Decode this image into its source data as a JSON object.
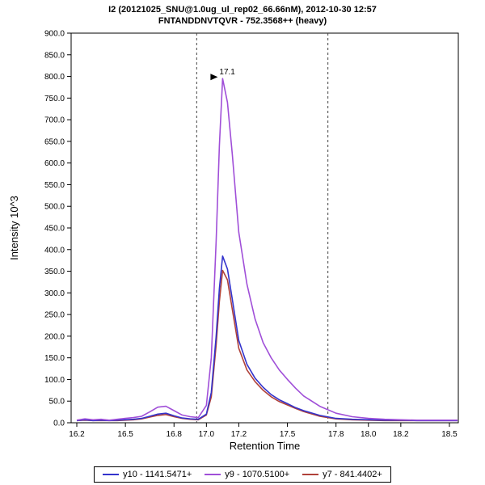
{
  "chart_data": {
    "type": "line",
    "title": "I2 (20121025_SNU@1.0ug_ul_rep02_66.66nM), 2012-10-30 12:57",
    "subtitle": "FNTANDDNVTQVR - 752.3568++ (heavy)",
    "xlabel": "Retention Time",
    "ylabel": "Intensity 10^3",
    "grid": false,
    "legend_position": "bottom",
    "xlim": [
      16.165,
      18.555
    ],
    "ylim": [
      0,
      900
    ],
    "x_ticks": [
      16.2,
      16.5,
      16.8,
      17.0,
      17.2,
      17.5,
      17.8,
      18.0,
      18.2,
      18.5
    ],
    "x_tick_labels": [
      "16.2",
      "16.5",
      "16.8",
      "17.0",
      "17.2",
      "17.5",
      "17.8",
      "18.0",
      "18.2",
      "18.5"
    ],
    "y_ticks": [
      0,
      50,
      100,
      150,
      200,
      250,
      300,
      350,
      400,
      450,
      500,
      550,
      600,
      650,
      700,
      750,
      800,
      850,
      900
    ],
    "y_tick_labels": [
      "0.0",
      "50.0",
      "100.0",
      "150.0",
      "200.0",
      "250.0",
      "300.0",
      "350.0",
      "400.0",
      "450.0",
      "500.0",
      "550.0",
      "600.0",
      "650.0",
      "700.0",
      "750.0",
      "800.0",
      "850.0",
      "900.0"
    ],
    "boundaries": [
      16.94,
      17.75
    ],
    "annotation": {
      "x": 17.1,
      "y": 795,
      "label": "17.1"
    },
    "x": [
      16.2,
      16.25,
      16.3,
      16.35,
      16.4,
      16.45,
      16.5,
      16.55,
      16.6,
      16.65,
      16.7,
      16.75,
      16.8,
      16.85,
      16.9,
      16.95,
      17.0,
      17.03,
      17.06,
      17.08,
      17.1,
      17.13,
      17.16,
      17.2,
      17.25,
      17.3,
      17.35,
      17.4,
      17.45,
      17.5,
      17.55,
      17.6,
      17.7,
      17.8,
      17.9,
      18.0,
      18.1,
      18.2,
      18.3,
      18.4,
      18.5,
      18.55
    ],
    "series": [
      {
        "name": "y10 - 1141.5471+",
        "color": "#3333cc",
        "values": [
          5,
          7,
          5,
          6,
          5,
          6,
          7,
          8,
          10,
          15,
          20,
          22,
          16,
          11,
          9,
          8,
          20,
          70,
          200,
          310,
          385,
          355,
          285,
          190,
          135,
          103,
          82,
          65,
          53,
          44,
          35,
          28,
          17,
          10,
          8,
          7,
          6,
          6,
          5,
          5,
          5,
          5
        ]
      },
      {
        "name": "y9 - 1070.5100+",
        "color": "#a04fd8",
        "values": [
          6,
          9,
          7,
          8,
          6,
          8,
          10,
          12,
          15,
          25,
          36,
          38,
          28,
          18,
          14,
          12,
          40,
          150,
          420,
          640,
          795,
          740,
          620,
          440,
          320,
          240,
          185,
          150,
          122,
          100,
          80,
          62,
          38,
          22,
          14,
          10,
          8,
          7,
          6,
          6,
          6,
          6
        ]
      },
      {
        "name": "y7 - 841.4402+",
        "color": "#b0413a",
        "values": [
          5,
          6,
          5,
          5,
          5,
          5,
          6,
          7,
          9,
          13,
          17,
          19,
          14,
          10,
          8,
          7,
          18,
          60,
          180,
          280,
          352,
          330,
          262,
          172,
          122,
          95,
          75,
          60,
          49,
          41,
          33,
          26,
          15,
          9,
          7,
          6,
          5,
          5,
          5,
          5,
          5,
          5
        ]
      }
    ]
  }
}
